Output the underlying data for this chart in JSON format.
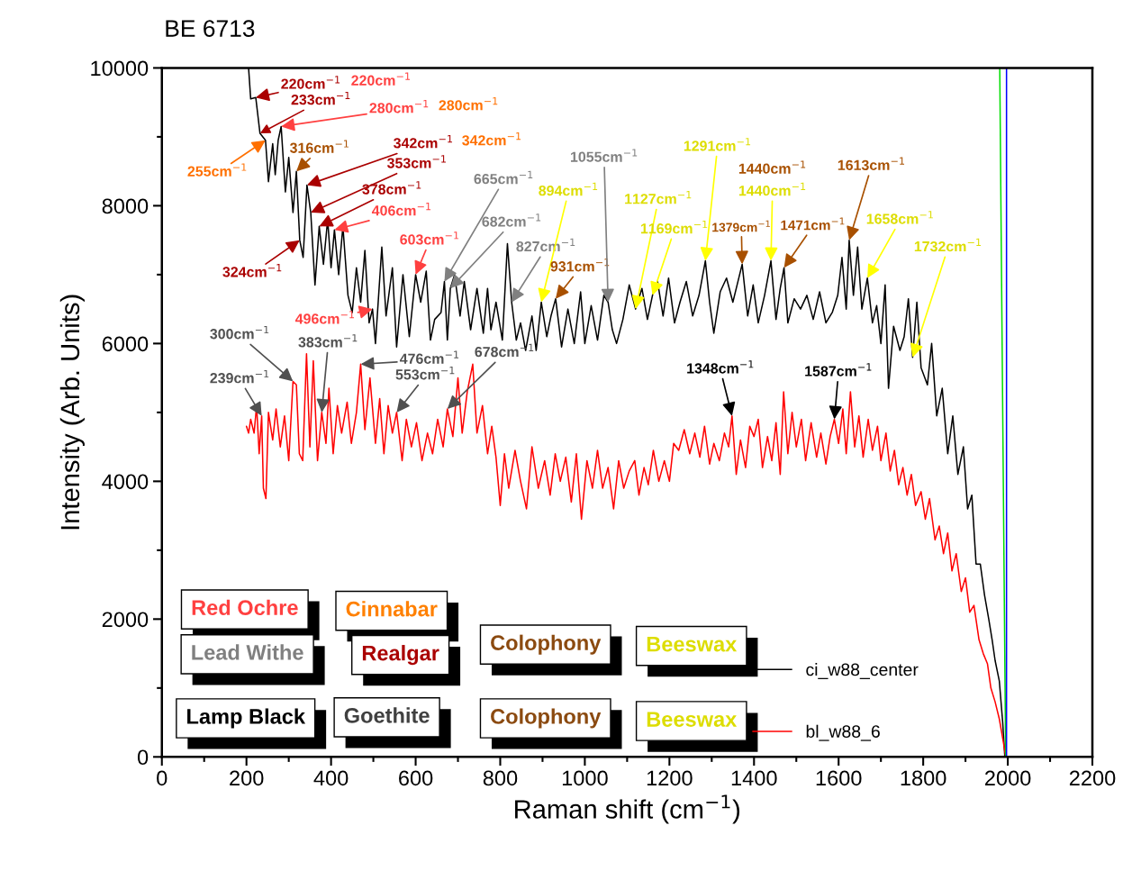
{
  "chart_data": {
    "type": "line",
    "title": "BE 6713",
    "xlabel": "Raman shift (cm$^{−1}$)",
    "ylabel": "Intensity (Arb. Units)",
    "xlim": [
      0,
      2200
    ],
    "xticks": [
      0,
      200,
      400,
      600,
      800,
      1000,
      1200,
      1400,
      1600,
      1800,
      2000,
      2200
    ],
    "ylim": [
      0,
      10000
    ],
    "yticks": [
      0,
      2000,
      4000,
      6000,
      8000,
      10000
    ],
    "grid": false,
    "legend": "bottom right",
    "marker": "none",
    "line_style": "solid",
    "series": [
      {
        "name": "ci_w88_center",
        "color": "#000000",
        "x": [
          205,
          210,
          222,
          232,
          245,
          252,
          262,
          268,
          275,
          282,
          292,
          300,
          310,
          318,
          326,
          334,
          343,
          352,
          362,
          372,
          382,
          392,
          400,
          408,
          418,
          428,
          440,
          450,
          460,
          470,
          480,
          490,
          498,
          505,
          520,
          530,
          545,
          555,
          570,
          585,
          600,
          612,
          625,
          635,
          645,
          660,
          668,
          675,
          682,
          692,
          705,
          715,
          730,
          745,
          760,
          770,
          778,
          790,
          805,
          817,
          827,
          838,
          848,
          860,
          875,
          885,
          897,
          910,
          920,
          931,
          945,
          960,
          975,
          990,
          1000,
          1015,
          1030,
          1045,
          1055,
          1065,
          1075,
          1090,
          1105,
          1120,
          1135,
          1148,
          1160,
          1172,
          1185,
          1198,
          1212,
          1225,
          1240,
          1255,
          1270,
          1285,
          1295,
          1305,
          1320,
          1335,
          1350,
          1360,
          1372,
          1385,
          1398,
          1410,
          1425,
          1440,
          1452,
          1462,
          1471,
          1480,
          1495,
          1510,
          1525,
          1540,
          1555,
          1570,
          1585,
          1598,
          1608,
          1618,
          1625,
          1635,
          1645,
          1655,
          1668,
          1680,
          1690,
          1700,
          1710,
          1718,
          1730,
          1745,
          1755,
          1765,
          1775,
          1785,
          1795,
          1810,
          1820,
          1832,
          1845,
          1858,
          1870,
          1882,
          1895,
          1905,
          1915,
          1925,
          1935,
          1945,
          1955,
          1963,
          1970,
          1980,
          1988,
          1993
        ],
        "values": [
          10000,
          9550,
          9570,
          9050,
          8950,
          8350,
          8900,
          8450,
          8950,
          9150,
          8200,
          8700,
          7900,
          8500,
          7500,
          7250,
          8300,
          7900,
          6850,
          7700,
          7150,
          7800,
          7100,
          7650,
          7000,
          7700,
          6700,
          6450,
          7100,
          6600,
          7350,
          6300,
          6500,
          6000,
          7400,
          6400,
          7100,
          5950,
          7000,
          6100,
          7000,
          6600,
          7050,
          6050,
          6350,
          6450,
          6900,
          6050,
          6800,
          7000,
          6400,
          6900,
          6200,
          6800,
          6150,
          6800,
          6200,
          6600,
          6050,
          7450,
          6600,
          6050,
          6300,
          5900,
          6400,
          5900,
          6600,
          6100,
          6400,
          6650,
          5950,
          6500,
          6000,
          6750,
          6000,
          6550,
          6050,
          6700,
          6600,
          6200,
          6000,
          6350,
          6850,
          6500,
          6800,
          6350,
          6700,
          6900,
          6400,
          6950,
          6300,
          6600,
          6900,
          6400,
          6700,
          7200,
          6600,
          6150,
          6750,
          6950,
          6600,
          6850,
          7150,
          6400,
          6850,
          6300,
          6700,
          7200,
          6350,
          6800,
          7100,
          6300,
          6650,
          6500,
          6700,
          6350,
          6750,
          6300,
          6450,
          6700,
          7250,
          6500,
          7500,
          6700,
          7400,
          6500,
          6950,
          6300,
          6550,
          6000,
          6850,
          5350,
          6250,
          5900,
          6100,
          6650,
          5800,
          6600,
          5650,
          5400,
          6000,
          4950,
          5350,
          4400,
          4950,
          4100,
          4500,
          3600,
          3800,
          2800,
          2800,
          2350,
          2000,
          1700,
          1400,
          1100,
          500,
          0
        ]
      },
      {
        "name": "bl_w88_6",
        "color": "#ff0000",
        "x": [
          200,
          205,
          210,
          218,
          224,
          230,
          236,
          240,
          246,
          252,
          262,
          270,
          280,
          290,
          300,
          310,
          318,
          325,
          333,
          342,
          350,
          358,
          368,
          378,
          388,
          395,
          405,
          415,
          425,
          438,
          448,
          460,
          470,
          480,
          492,
          505,
          515,
          525,
          535,
          545,
          555,
          568,
          578,
          590,
          602,
          615,
          628,
          640,
          652,
          665,
          675,
          688,
          700,
          710,
          722,
          735,
          745,
          758,
          770,
          780,
          790,
          800,
          810,
          820,
          835,
          848,
          862,
          875,
          890,
          905,
          918,
          930,
          942,
          955,
          968,
          980,
          992,
          1005,
          1018,
          1030,
          1042,
          1055,
          1068,
          1080,
          1092,
          1105,
          1118,
          1128,
          1140,
          1150,
          1162,
          1175,
          1188,
          1200,
          1210,
          1222,
          1235,
          1248,
          1260,
          1272,
          1283,
          1295,
          1305,
          1318,
          1330,
          1340,
          1348,
          1358,
          1368,
          1380,
          1390,
          1400,
          1410,
          1420,
          1432,
          1442,
          1452,
          1462,
          1470,
          1480,
          1490,
          1500,
          1512,
          1522,
          1535,
          1548,
          1558,
          1570,
          1580,
          1590,
          1600,
          1610,
          1618,
          1628,
          1638,
          1648,
          1658,
          1670,
          1680,
          1692,
          1700,
          1712,
          1722,
          1732,
          1742,
          1752,
          1762,
          1772,
          1782,
          1795,
          1805,
          1815,
          1828,
          1838,
          1848,
          1858,
          1868,
          1878,
          1890,
          1900,
          1910,
          1920,
          1932,
          1942,
          1952,
          1960,
          1970,
          1980,
          1990,
          1995
        ],
        "values": [
          4800,
          4700,
          4900,
          4700,
          5100,
          4400,
          4950,
          3900,
          3750,
          5000,
          4600,
          5050,
          4500,
          4950,
          4300,
          5450,
          5400,
          4400,
          4300,
          5850,
          4500,
          5750,
          4300,
          5000,
          4550,
          5350,
          4400,
          5100,
          4700,
          5150,
          4550,
          5000,
          5700,
          4750,
          5500,
          4550,
          5200,
          4400,
          5100,
          4700,
          5000,
          4300,
          4900,
          4500,
          4850,
          4300,
          4700,
          4400,
          4900,
          4500,
          5050,
          4650,
          5500,
          4700,
          5300,
          5700,
          4700,
          5100,
          4400,
          4800,
          4350,
          3650,
          4400,
          3900,
          4450,
          4000,
          3600,
          4500,
          3900,
          4300,
          3800,
          4400,
          4000,
          4350,
          3700,
          4400,
          3450,
          4300,
          3900,
          4450,
          3900,
          4200,
          3600,
          4300,
          3900,
          4150,
          4300,
          3800,
          4200,
          3950,
          4450,
          4000,
          4300,
          4000,
          4550,
          4450,
          4750,
          4400,
          4700,
          4350,
          4800,
          4250,
          4550,
          4300,
          4700,
          4500,
          4950,
          4100,
          4600,
          4200,
          4800,
          4650,
          4900,
          4200,
          4650,
          4300,
          4850,
          4100,
          5300,
          4400,
          5000,
          4500,
          4900,
          4300,
          4850,
          4350,
          4700,
          4250,
          4650,
          4900,
          4550,
          5050,
          4400,
          5300,
          4500,
          4950,
          4350,
          4900,
          4450,
          4800,
          4300,
          4700,
          4150,
          4450,
          3950,
          4200,
          3800,
          4100,
          3650,
          3850,
          3450,
          3750,
          3150,
          3350,
          2950,
          3250,
          2700,
          2950,
          2400,
          2600,
          2100,
          2200,
          1700,
          1500,
          1350,
          1000,
          800,
          550,
          200,
          0
        ]
      },
      {
        "color": "#00dd00",
        "x": [
          1981,
          1995
        ],
        "values": [
          10000,
          0
        ]
      },
      {
        "color": "#0000ff",
        "x": [
          1997,
          1997
        ],
        "values": [
          10000,
          0
        ]
      }
    ],
    "annotations": [
      {
        "text": "220cm$^{−1}$",
        "x": 222,
        "y": 9570
      },
      "220cm$^{−1}$",
      {
        "text": "233cm$^{−1}$",
        "x": 232,
        "y": 9050
      },
      {
        "text": "280cm$^{−1}$",
        "x": 282,
        "y": 9150
      },
      "280cm$^{−1}$",
      {
        "text": "255cm$^{−1}$",
        "x": 245,
        "y": 8950
      },
      {
        "text": "316cm$^{−1}$",
        "x": 318,
        "y": 8500
      },
      {
        "text": "324cm$^{−1}$",
        "x": 326,
        "y": 7500
      },
      {
        "text": "342cm$^{−1}$",
        "x": 343,
        "y": 8300
      },
      "342cm$^{−1}$",
      {
        "text": "353cm$^{−1}$",
        "x": 352,
        "y": 7900
      },
      {
        "text": "378cm$^{−1}$",
        "x": 372,
        "y": 7700
      },
      {
        "text": "406cm$^{−1}$",
        "x": 408,
        "y": 7650
      },
      {
        "text": "603cm$^{−1}$",
        "x": 600,
        "y": 7000
      },
      {
        "text": "665cm$^{−1}$",
        "x": 668,
        "y": 6900
      },
      {
        "text": "682cm$^{−1}$",
        "x": 682,
        "y": 6800
      },
      {
        "text": "827cm$^{−1}$",
        "x": 827,
        "y": 6600
      },
      {
        "text": "894cm$^{−1}$",
        "x": 897,
        "y": 6600
      },
      {
        "text": "931cm$^{−1}$",
        "x": 931,
        "y": 6650
      },
      {
        "text": "1055cm$^{−1}$",
        "x": 1055,
        "y": 6600
      },
      {
        "text": "1127cm$^{−1}$",
        "x": 1120,
        "y": 6500
      },
      {
        "text": "1169cm$^{−1}$",
        "x": 1160,
        "y": 6700
      },
      {
        "text": "1291cm$^{−1}$",
        "x": 1285,
        "y": 7200
      },
      {
        "text": "1379cm$^{−1}$",
        "x": 1372,
        "y": 7150
      },
      "1440cm$^{−1}$",
      {
        "text": "1440cm$^{−1}$",
        "x": 1440,
        "y": 7200
      },
      {
        "text": "1471cm$^{−1}$",
        "x": 1471,
        "y": 7100
      },
      {
        "text": "1613cm$^{−1}$",
        "x": 1625,
        "y": 7500
      },
      {
        "text": "1658cm$^{−1}$",
        "x": 1668,
        "y": 6950
      },
      {
        "text": "1732cm$^{−1}$",
        "x": 1775,
        "y": 5800
      },
      {
        "text": "496cm$^{−1}$",
        "x": 498,
        "y": 6500
      },
      {
        "text": "300cm$^{−1}$",
        "x": 310,
        "y": 5450
      },
      {
        "text": "383cm$^{−1}$",
        "x": 378,
        "y": 5000
      },
      {
        "text": "476cm$^{−1}$",
        "x": 470,
        "y": 5700
      },
      {
        "text": "239cm$^{−1}$",
        "x": 236,
        "y": 4950
      },
      {
        "text": "553cm$^{−1}$",
        "x": 555,
        "y": 5000
      },
      {
        "text": "678cm$^{−1}$",
        "x": 675,
        "y": 5050
      },
      {
        "text": "1348cm$^{−1}$",
        "x": 1348,
        "y": 4950
      },
      {
        "text": "1587cm$^{−1}$",
        "x": 1590,
        "y": 4900
      },
      "Red Ochre",
      "Cinnabar",
      "Lead Withe",
      "Realgar",
      "Colophony",
      "Beeswax",
      "Lamp Black",
      "Goethite",
      "Colophony",
      "Beeswax"
    ]
  }
}
